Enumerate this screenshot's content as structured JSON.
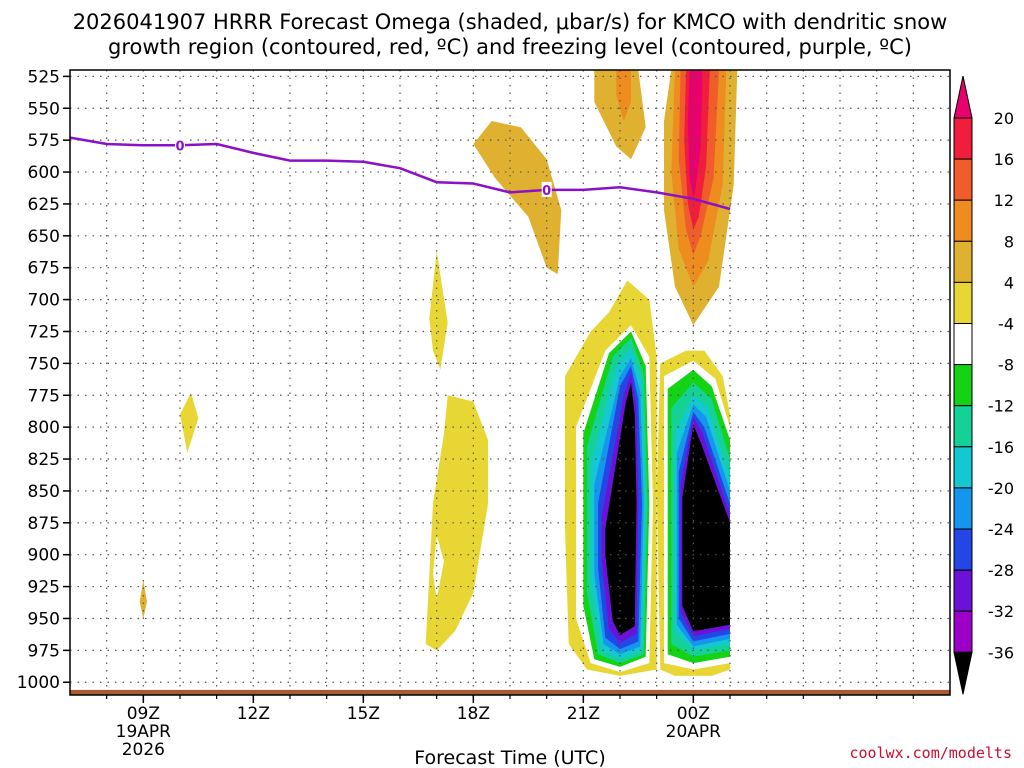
{
  "colors": {
    "frz": "#8b10c8",
    "ground": "#a85a32",
    "credit": "#c8102e",
    "grid": "#555555",
    "levels": [
      "#b4b4b4",
      "#9c00c8",
      "#6a12d8",
      "#2446e6",
      "#1496ee",
      "#14c8d2",
      "#14d296",
      "#14d214",
      "#ffffff",
      "#e8d634",
      "#e0b030",
      "#ee8c20",
      "#f05c2a",
      "#f01e3c",
      "#e8006c"
    ]
  },
  "chart_data": {
    "type": "heatmap",
    "title_lines": [
      "2026041907 HRRR Forecast Omega (shaded, μbar/s) for KMCO with dendritic snow",
      "growth region (contoured, red, ºC) and freezing level (contoured, purple, ºC)"
    ],
    "xlabel": "Forecast Time (UTC)",
    "credit": "coolwx.com/modelts",
    "xlim": [
      7,
      31
    ],
    "ylim": [
      1010,
      520
    ],
    "x_ticks": [
      {
        "x": 9,
        "label": "09Z",
        "sub": [
          "19APR",
          "2026"
        ]
      },
      {
        "x": 12,
        "label": "12Z",
        "sub": []
      },
      {
        "x": 15,
        "label": "15Z",
        "sub": []
      },
      {
        "x": 18,
        "label": "18Z",
        "sub": []
      },
      {
        "x": 21,
        "label": "21Z",
        "sub": []
      },
      {
        "x": 24,
        "label": "00Z",
        "sub": [
          "20APR"
        ]
      }
    ],
    "y_ticks": [
      525,
      550,
      575,
      600,
      625,
      650,
      675,
      700,
      725,
      750,
      775,
      800,
      825,
      850,
      875,
      900,
      925,
      950,
      975,
      1000
    ],
    "colorbar": {
      "ticks": [
        20,
        16,
        12,
        8,
        4,
        -4,
        -8,
        -12,
        -16,
        -20,
        -24,
        -28,
        -32,
        -36
      ],
      "units": "μbar/s"
    },
    "freezing_level": {
      "label": "0",
      "x": [
        7,
        8,
        9,
        10,
        11,
        12,
        13,
        14,
        15,
        16,
        17,
        18,
        19,
        20,
        21,
        22,
        23,
        24,
        25
      ],
      "p": [
        573,
        578,
        579,
        579,
        578,
        585,
        591,
        591,
        592,
        597,
        608,
        609,
        616,
        614,
        614,
        612,
        616,
        621,
        629
      ],
      "label_x": [
        10,
        20
      ]
    },
    "omega_regions": [
      {
        "level": 4,
        "points": [
          [
            8.9,
            937
          ],
          [
            9.0,
            920
          ],
          [
            9.1,
            937
          ],
          [
            9.0,
            950
          ]
        ]
      },
      {
        "level": -4,
        "points": [
          [
            10.0,
            790
          ],
          [
            10.3,
            773
          ],
          [
            10.5,
            793
          ],
          [
            10.2,
            820
          ]
        ]
      },
      {
        "level": -4,
        "points": [
          [
            16.8,
            715
          ],
          [
            17.0,
            662
          ],
          [
            17.3,
            718
          ],
          [
            17.1,
            755
          ],
          [
            16.9,
            740
          ]
        ]
      },
      {
        "level": 4,
        "points": [
          [
            18.0,
            578
          ],
          [
            18.5,
            560
          ],
          [
            19.3,
            565
          ],
          [
            20.0,
            590
          ],
          [
            20.4,
            630
          ],
          [
            20.3,
            680
          ],
          [
            20.0,
            675
          ],
          [
            19.5,
            635
          ],
          [
            18.6,
            605
          ]
        ]
      },
      {
        "level": -4,
        "points": [
          [
            16.7,
            970
          ],
          [
            16.9,
            860
          ],
          [
            17.2,
            805
          ],
          [
            17.3,
            775
          ],
          [
            18.0,
            780
          ],
          [
            18.4,
            810
          ],
          [
            18.4,
            860
          ],
          [
            18.0,
            930
          ],
          [
            17.5,
            960
          ],
          [
            17.0,
            975
          ]
        ]
      },
      {
        "level": -8,
        "points": [
          [
            16.9,
            915
          ],
          [
            17.0,
            885
          ],
          [
            17.2,
            905
          ],
          [
            17.0,
            935
          ]
        ]
      },
      {
        "level": -4,
        "points": [
          [
            20.5,
            760
          ],
          [
            21.2,
            725
          ],
          [
            21.7,
            710
          ],
          [
            22.2,
            685
          ],
          [
            22.8,
            700
          ],
          [
            23.0,
            745
          ],
          [
            23.0,
            860
          ],
          [
            23.0,
            990
          ],
          [
            22.0,
            995
          ],
          [
            21.1,
            990
          ],
          [
            20.6,
            970
          ],
          [
            20.5,
            880
          ]
        ]
      },
      {
        "level": -8,
        "points": [
          [
            20.8,
            800
          ],
          [
            21.6,
            740
          ],
          [
            22.3,
            720
          ],
          [
            22.8,
            745
          ],
          [
            22.9,
            860
          ],
          [
            22.8,
            985
          ],
          [
            22.0,
            992
          ],
          [
            21.2,
            985
          ],
          [
            20.8,
            950
          ]
        ]
      },
      {
        "level": -12,
        "points": [
          [
            21.0,
            805
          ],
          [
            21.7,
            742
          ],
          [
            22.3,
            725
          ],
          [
            22.7,
            752
          ],
          [
            22.8,
            860
          ],
          [
            22.7,
            980
          ],
          [
            22.0,
            988
          ],
          [
            21.3,
            982
          ],
          [
            21.0,
            940
          ]
        ]
      },
      {
        "level": -16,
        "points": [
          [
            21.1,
            815
          ],
          [
            21.8,
            745
          ],
          [
            22.3,
            730
          ],
          [
            22.65,
            758
          ],
          [
            22.75,
            860
          ],
          [
            22.65,
            978
          ],
          [
            22.0,
            985
          ],
          [
            21.4,
            978
          ],
          [
            21.1,
            930
          ]
        ]
      },
      {
        "level": -20,
        "points": [
          [
            21.2,
            830
          ],
          [
            21.9,
            752
          ],
          [
            22.3,
            738
          ],
          [
            22.6,
            765
          ],
          [
            22.7,
            860
          ],
          [
            22.6,
            975
          ],
          [
            22.0,
            982
          ],
          [
            21.5,
            975
          ],
          [
            21.2,
            920
          ]
        ]
      },
      {
        "level": -24,
        "points": [
          [
            21.3,
            845
          ],
          [
            22.0,
            760
          ],
          [
            22.3,
            746
          ],
          [
            22.55,
            772
          ],
          [
            22.65,
            860
          ],
          [
            22.55,
            972
          ],
          [
            22.0,
            978
          ],
          [
            21.55,
            970
          ],
          [
            21.3,
            915
          ]
        ]
      },
      {
        "level": -28,
        "points": [
          [
            21.4,
            860
          ],
          [
            22.0,
            768
          ],
          [
            22.3,
            752
          ],
          [
            22.5,
            778
          ],
          [
            22.6,
            860
          ],
          [
            22.5,
            968
          ],
          [
            22.0,
            974
          ],
          [
            21.6,
            965
          ],
          [
            21.4,
            910
          ]
        ]
      },
      {
        "level": -32,
        "points": [
          [
            21.5,
            870
          ],
          [
            22.1,
            775
          ],
          [
            22.3,
            757
          ],
          [
            22.45,
            785
          ],
          [
            22.5,
            860
          ],
          [
            22.45,
            962
          ],
          [
            22.0,
            969
          ],
          [
            21.7,
            958
          ],
          [
            21.5,
            905
          ]
        ]
      },
      {
        "level": -36,
        "points": [
          [
            21.6,
            880
          ],
          [
            22.15,
            782
          ],
          [
            22.3,
            765
          ],
          [
            22.4,
            790
          ],
          [
            22.45,
            860
          ],
          [
            22.4,
            956
          ],
          [
            22.0,
            963
          ],
          [
            21.8,
            952
          ],
          [
            21.6,
            900
          ]
        ]
      },
      {
        "level": -4,
        "points": [
          [
            23.1,
            750
          ],
          [
            23.8,
            740
          ],
          [
            24.3,
            740
          ],
          [
            24.8,
            760
          ],
          [
            25.0,
            790
          ],
          [
            25.0,
            990
          ],
          [
            24.5,
            995
          ],
          [
            23.5,
            995
          ],
          [
            23.1,
            990
          ],
          [
            23.0,
            850
          ]
        ]
      },
      {
        "level": -8,
        "points": [
          [
            23.2,
            760
          ],
          [
            24.0,
            748
          ],
          [
            24.6,
            762
          ],
          [
            25.0,
            800
          ],
          [
            25.0,
            985
          ],
          [
            24.0,
            990
          ],
          [
            23.2,
            985
          ]
        ]
      },
      {
        "level": -12,
        "points": [
          [
            23.3,
            770
          ],
          [
            24.0,
            755
          ],
          [
            24.5,
            768
          ],
          [
            25.0,
            810
          ],
          [
            25.0,
            980
          ],
          [
            24.0,
            985
          ],
          [
            23.3,
            978
          ]
        ]
      },
      {
        "level": -16,
        "points": [
          [
            23.4,
            785
          ],
          [
            24.0,
            765
          ],
          [
            24.5,
            778
          ],
          [
            25.0,
            825
          ],
          [
            25.0,
            975
          ],
          [
            24.0,
            980
          ],
          [
            23.4,
            970
          ]
        ]
      },
      {
        "level": -20,
        "points": [
          [
            23.5,
            805
          ],
          [
            24.0,
            775
          ],
          [
            24.4,
            785
          ],
          [
            25.0,
            840
          ],
          [
            25.0,
            970
          ],
          [
            24.0,
            975
          ],
          [
            23.5,
            960
          ]
        ]
      },
      {
        "level": -24,
        "points": [
          [
            23.55,
            820
          ],
          [
            24.0,
            782
          ],
          [
            24.35,
            792
          ],
          [
            25.0,
            850
          ],
          [
            25.0,
            966
          ],
          [
            24.0,
            972
          ],
          [
            23.55,
            955
          ]
        ]
      },
      {
        "level": -28,
        "points": [
          [
            23.6,
            835
          ],
          [
            24.0,
            788
          ],
          [
            24.3,
            800
          ],
          [
            25.0,
            860
          ],
          [
            25.0,
            962
          ],
          [
            24.0,
            968
          ],
          [
            23.6,
            950
          ]
        ]
      },
      {
        "level": -32,
        "points": [
          [
            23.65,
            845
          ],
          [
            24.0,
            792
          ],
          [
            24.25,
            805
          ],
          [
            25.0,
            868
          ],
          [
            25.0,
            958
          ],
          [
            24.0,
            964
          ],
          [
            23.65,
            945
          ]
        ]
      },
      {
        "level": -36,
        "points": [
          [
            23.7,
            855
          ],
          [
            24.0,
            798
          ],
          [
            24.2,
            812
          ],
          [
            25.0,
            875
          ],
          [
            25.0,
            955
          ],
          [
            24.0,
            960
          ],
          [
            23.7,
            940
          ]
        ]
      },
      {
        "level": 4,
        "points": [
          [
            21.3,
            520
          ],
          [
            22.5,
            520
          ],
          [
            22.7,
            565
          ],
          [
            22.3,
            590
          ],
          [
            21.9,
            580
          ],
          [
            21.3,
            545
          ]
        ]
      },
      {
        "level": 8,
        "points": [
          [
            21.9,
            520
          ],
          [
            22.3,
            520
          ],
          [
            22.3,
            545
          ],
          [
            22.1,
            560
          ],
          [
            21.9,
            540
          ]
        ]
      },
      {
        "level": 4,
        "points": [
          [
            23.4,
            520
          ],
          [
            25.2,
            520
          ],
          [
            25.1,
            610
          ],
          [
            24.7,
            690
          ],
          [
            24.0,
            720
          ],
          [
            23.5,
            690
          ],
          [
            23.2,
            630
          ],
          [
            23.2,
            560
          ]
        ]
      },
      {
        "level": 8,
        "points": [
          [
            23.5,
            520
          ],
          [
            24.9,
            520
          ],
          [
            24.8,
            610
          ],
          [
            24.4,
            670
          ],
          [
            24.0,
            690
          ],
          [
            23.6,
            660
          ],
          [
            23.4,
            600
          ]
        ]
      },
      {
        "level": 12,
        "points": [
          [
            23.65,
            520
          ],
          [
            24.7,
            520
          ],
          [
            24.55,
            605
          ],
          [
            24.2,
            650
          ],
          [
            24.0,
            665
          ],
          [
            23.8,
            645
          ],
          [
            23.6,
            590
          ]
        ]
      },
      {
        "level": 16,
        "points": [
          [
            23.8,
            520
          ],
          [
            24.45,
            520
          ],
          [
            24.35,
            595
          ],
          [
            24.15,
            635
          ],
          [
            24.0,
            645
          ],
          [
            23.85,
            625
          ],
          [
            23.75,
            575
          ]
        ]
      },
      {
        "level": 20,
        "points": [
          [
            23.9,
            520
          ],
          [
            24.25,
            520
          ],
          [
            24.2,
            580
          ],
          [
            24.05,
            615
          ],
          [
            24.0,
            620
          ],
          [
            23.9,
            605
          ],
          [
            23.85,
            560
          ]
        ]
      }
    ],
    "ground": {
      "p_top": 1006,
      "p_bottom": 1010
    }
  }
}
